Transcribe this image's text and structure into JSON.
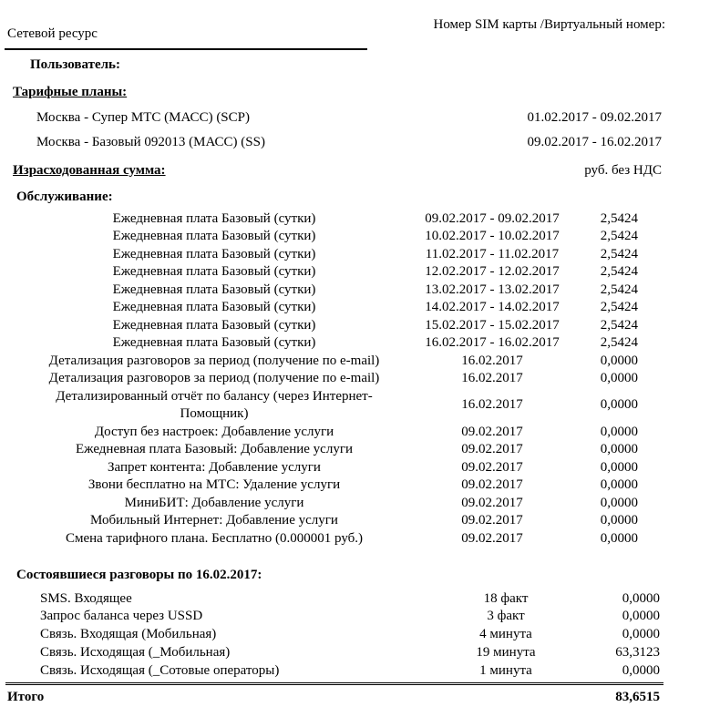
{
  "header": {
    "left_title": "Сетевой ресурс",
    "right_title": "Номер SIM карты /Виртуальный номер:",
    "user_label": "Пользователь:"
  },
  "tariff_plans": {
    "heading": "Тарифные планы:",
    "rows": [
      {
        "label": "Москва - Супер МТС (МАСС) (SCP)",
        "mid": "01.02.2017 - 09.02.2017"
      },
      {
        "label": "Москва - Базовый 092013 (МАСС) (SS)",
        "mid": "09.02.2017 - 16.02.2017"
      }
    ]
  },
  "spent_sum": {
    "heading": "Израсходованная сумма:",
    "currency_note": "руб. без НДС"
  },
  "service": {
    "heading": "Обслуживание:",
    "rows": [
      {
        "label": "Ежедневная плата Базовый (сутки)",
        "mid": "09.02.2017 - 09.02.2017",
        "amount": "2,5424"
      },
      {
        "label": "Ежедневная плата Базовый (сутки)",
        "mid": "10.02.2017 - 10.02.2017",
        "amount": "2,5424"
      },
      {
        "label": "Ежедневная плата Базовый (сутки)",
        "mid": "11.02.2017 - 11.02.2017",
        "amount": "2,5424"
      },
      {
        "label": "Ежедневная плата Базовый (сутки)",
        "mid": "12.02.2017 - 12.02.2017",
        "amount": "2,5424"
      },
      {
        "label": "Ежедневная плата Базовый (сутки)",
        "mid": "13.02.2017 - 13.02.2017",
        "amount": "2,5424"
      },
      {
        "label": "Ежедневная плата Базовый (сутки)",
        "mid": "14.02.2017 - 14.02.2017",
        "amount": "2,5424"
      },
      {
        "label": "Ежедневная плата Базовый (сутки)",
        "mid": "15.02.2017 - 15.02.2017",
        "amount": "2,5424"
      },
      {
        "label": "Ежедневная плата Базовый (сутки)",
        "mid": "16.02.2017 - 16.02.2017",
        "amount": "2,5424"
      },
      {
        "label": "Детализация разговоров за период (получение по e-mail)",
        "mid": "16.02.2017",
        "amount": "0,0000"
      },
      {
        "label": "Детализация разговоров за период (получение по e-mail)",
        "mid": "16.02.2017",
        "amount": "0,0000"
      },
      {
        "label": "Детализированный отчёт по балансу (через Интернет-\nПомощник)",
        "mid": "16.02.2017",
        "amount": "0,0000"
      },
      {
        "label": "Доступ без настроек: Добавление услуги",
        "mid": "09.02.2017",
        "amount": "0,0000"
      },
      {
        "label": "Ежедневная плата Базовый: Добавление услуги",
        "mid": "09.02.2017",
        "amount": "0,0000"
      },
      {
        "label": "Запрет контента: Добавление услуги",
        "mid": "09.02.2017",
        "amount": "0,0000"
      },
      {
        "label": "Звони бесплатно на МТС: Удаление услуги",
        "mid": "09.02.2017",
        "amount": "0,0000"
      },
      {
        "label": "МиниБИТ: Добавление услуги",
        "mid": "09.02.2017",
        "amount": "0,0000"
      },
      {
        "label": "Мобильный Интернет: Добавление услуги",
        "mid": "09.02.2017",
        "amount": "0,0000"
      },
      {
        "label": "Смена тарифного плана. Бесплатно (0.000001 руб.)",
        "mid": "09.02.2017",
        "amount": "0,0000"
      }
    ]
  },
  "calls": {
    "heading": "Состоявшиеся разговоры по 16.02.2017:",
    "rows": [
      {
        "label": "SMS. Входящее",
        "mid": "18 факт",
        "amount": "0,0000"
      },
      {
        "label": "Запрос баланса через USSD",
        "mid": "3 факт",
        "amount": "0,0000"
      },
      {
        "label": "Связь. Входящая (Мобильная)",
        "mid": "4 минута",
        "amount": "0,0000"
      },
      {
        "label": "Связь. Исходящая (_Мобильная)",
        "mid": "19 минута",
        "amount": "63,3123"
      },
      {
        "label": "Связь. Исходящая (_Сотовые операторы)",
        "mid": "1 минута",
        "amount": "0,0000"
      }
    ]
  },
  "total": {
    "label": "Итого",
    "amount": "83,6515"
  }
}
